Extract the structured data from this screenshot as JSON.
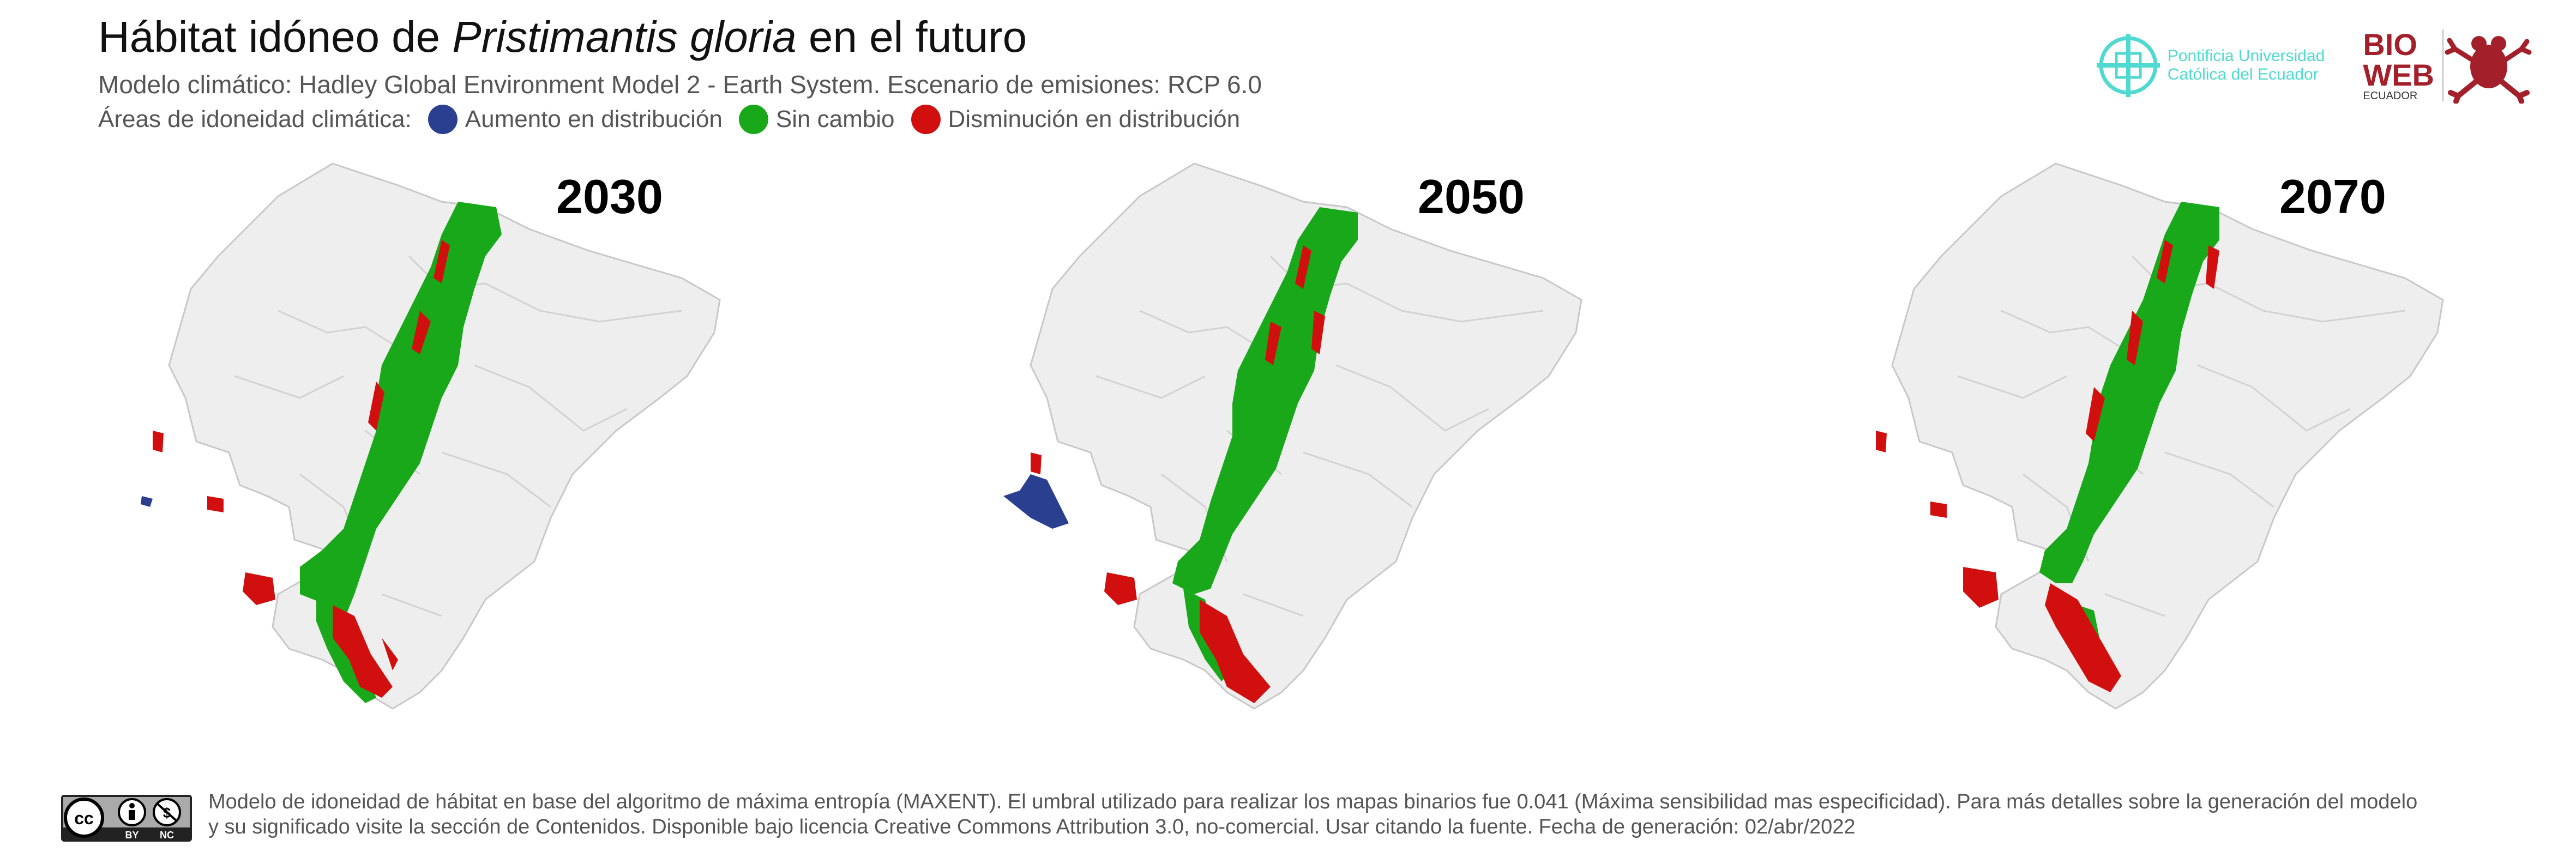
{
  "header": {
    "title_prefix": "Hábitat idóneo de ",
    "title_species": "Pristimantis gloria",
    "title_suffix": " en el futuro",
    "subtitle": "Modelo climático: Hadley Global Environment Model 2 - Earth System. Escenario de emisiones: RCP 6.0"
  },
  "legend": {
    "label": "Áreas de idoneidad climática:",
    "items": [
      {
        "label": "Aumento en distribución",
        "color": "#2a3f8f"
      },
      {
        "label": "Sin cambio",
        "color": "#18a81a"
      },
      {
        "label": "Disminución en distribución",
        "color": "#d10f0f"
      }
    ]
  },
  "logos": {
    "puce_line1": "Pontificia Universidad",
    "puce_line2": "Católica del Ecuador",
    "bioweb_line1": "BIO",
    "bioweb_line2": "WEB",
    "bioweb_line3": "ECUADOR"
  },
  "maps": [
    {
      "year": "2030",
      "increase_west": false
    },
    {
      "year": "2050",
      "increase_west": true
    },
    {
      "year": "2070",
      "increase_west": false
    }
  ],
  "footer": {
    "text_line1": "Modelo de idoneidad de hábitat en base del algoritmo de máxima entropía (MAXENT). El umbral utilizado para realizar los mapas binarios fue 0.041 (Máxima sensibilidad mas especificidad). Para más detalles sobre la generación del modelo",
    "text_line2": "y su significado visite la sección de Contenidos. Disponible bajo licencia Creative Commons Attribution 3.0, no-comercial. Usar citando la fuente. Fecha de generación: 02/abr/2022",
    "cc_by": "BY",
    "cc_nc": "NC"
  }
}
